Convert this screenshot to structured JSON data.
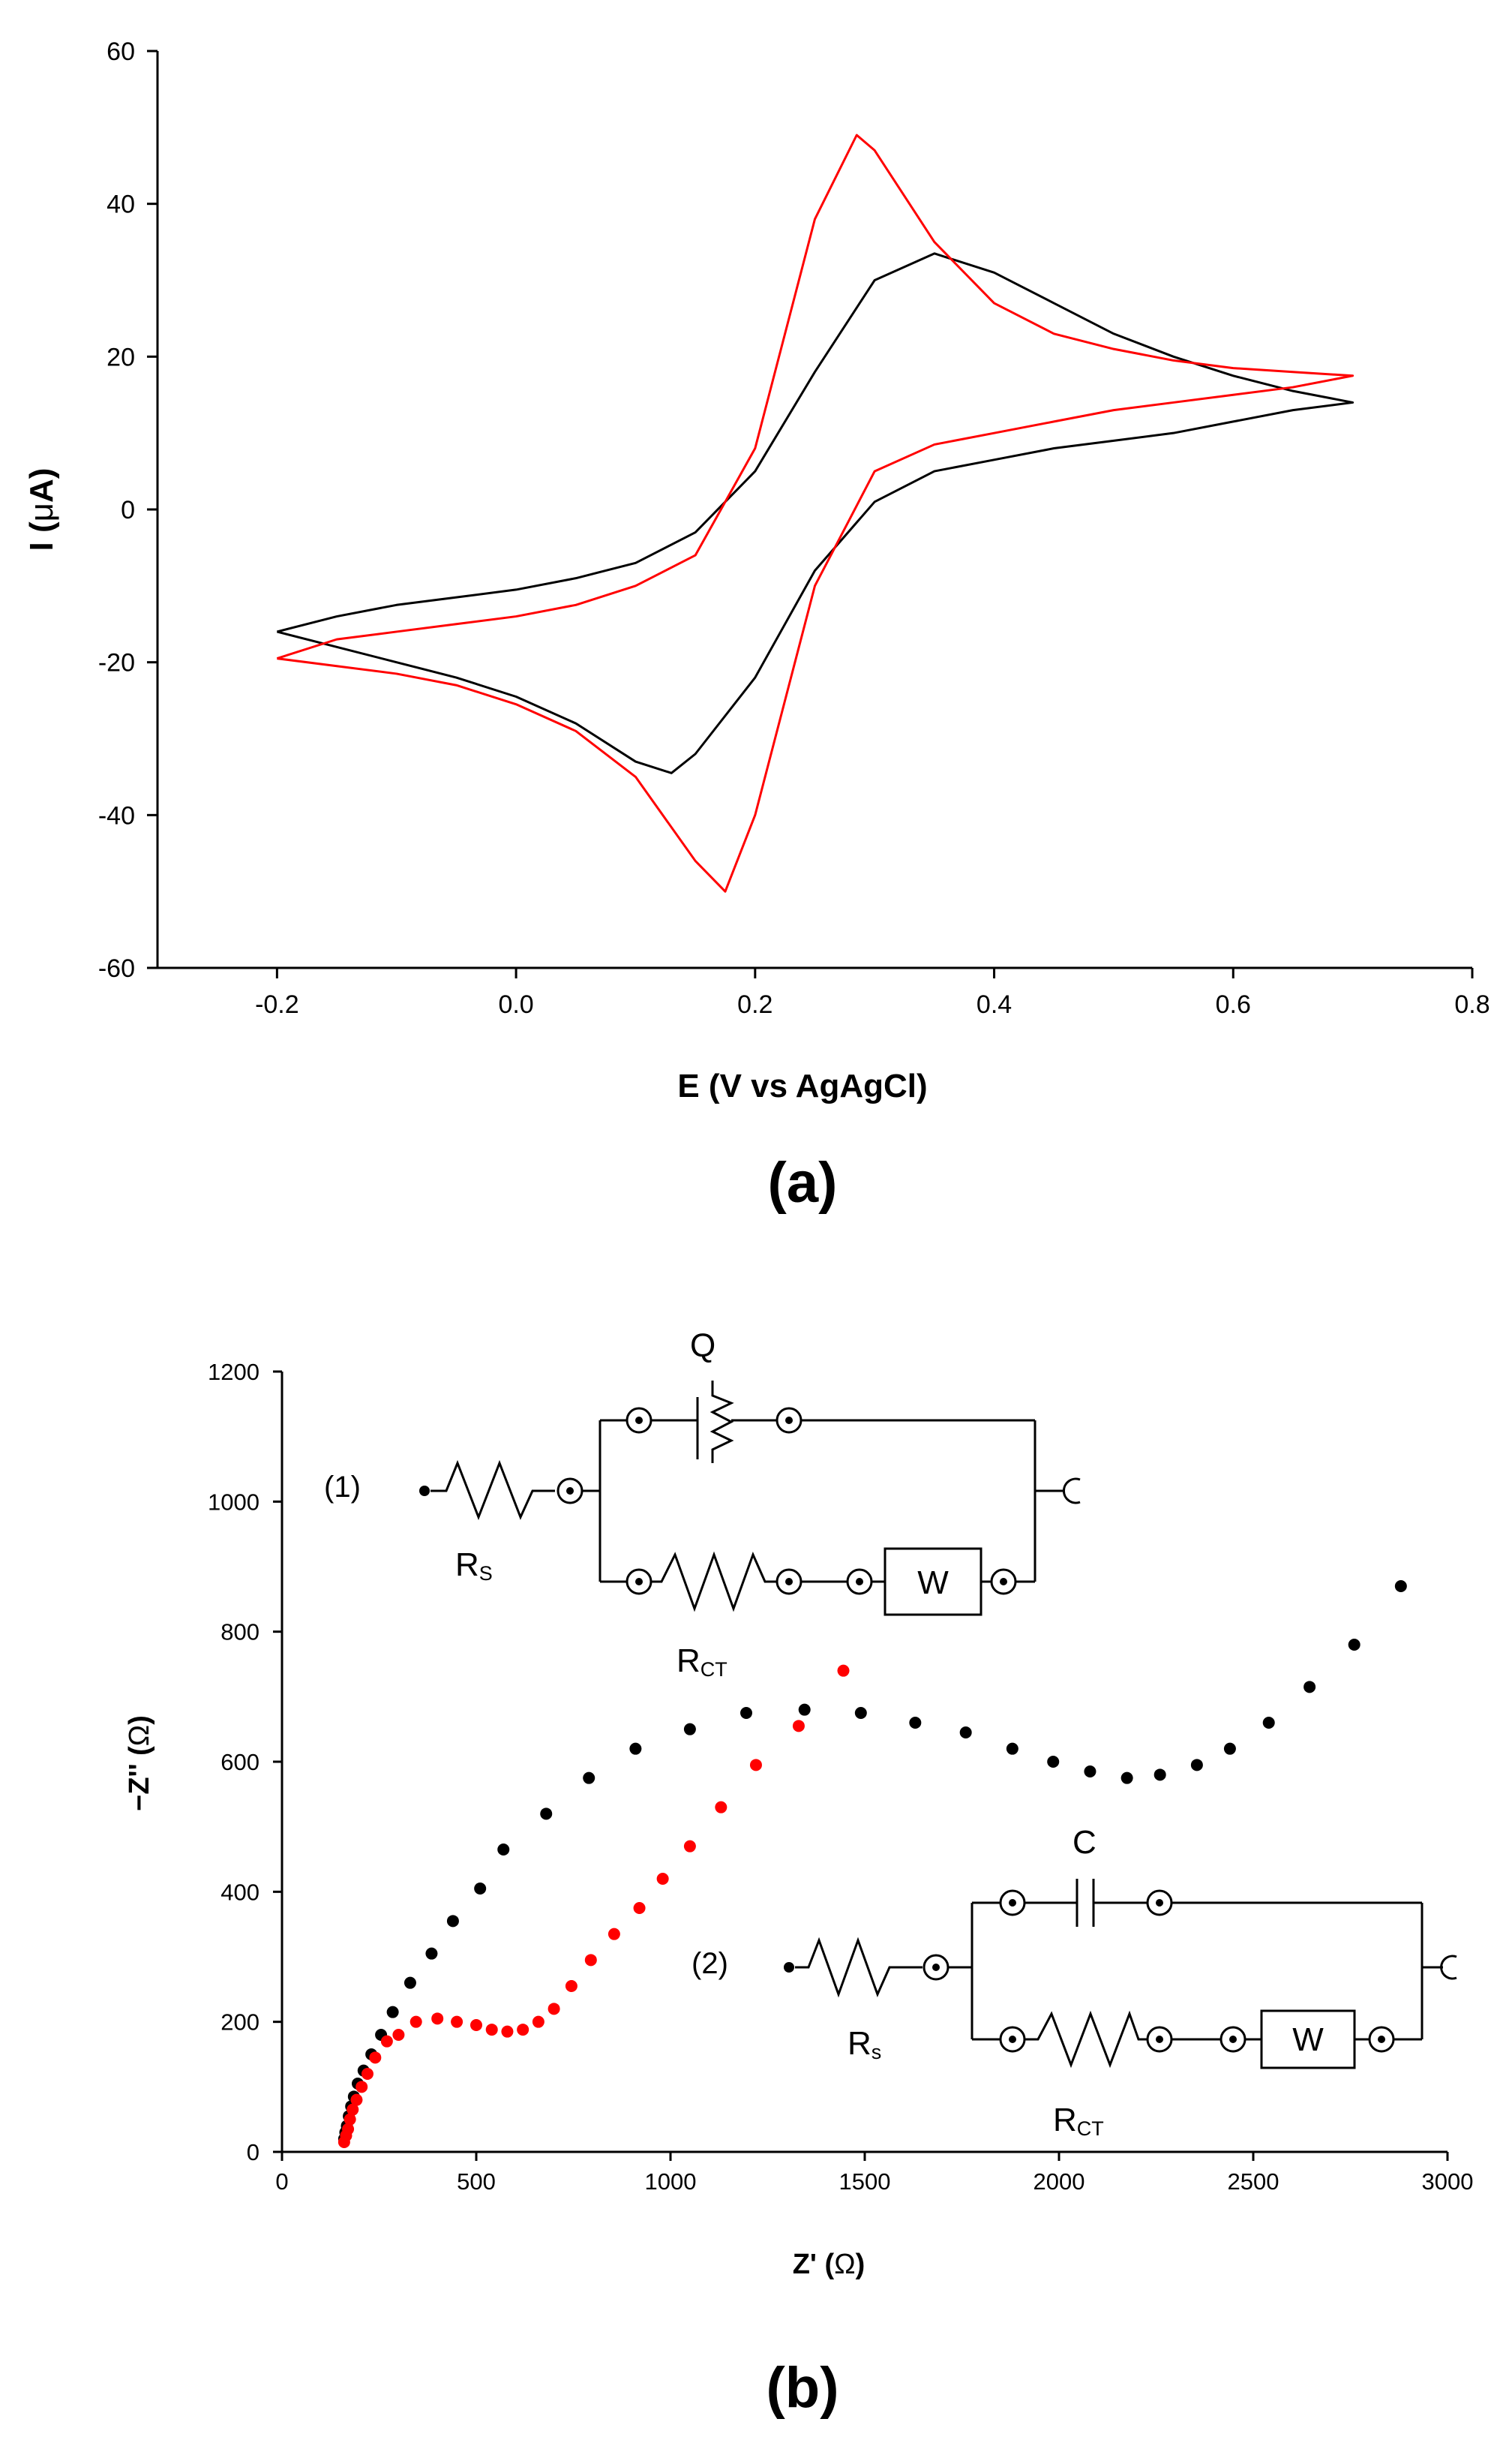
{
  "chart_data": [
    {
      "type": "line",
      "panel_label": "(a)",
      "xlabel": "E (V vs AgAgCl)",
      "ylabel_prefix": "I (",
      "ylabel_mu": "μ",
      "ylabel_suffix": "A)",
      "xlim": [
        -0.3,
        0.8
      ],
      "ylim": [
        -60,
        60
      ],
      "x_ticks": [
        -0.2,
        0.0,
        0.2,
        0.4,
        0.6,
        0.8
      ],
      "x_tick_labels": [
        "-0.2",
        "0.0",
        "0.2",
        "0.4",
        "0.6",
        "0.8"
      ],
      "y_ticks": [
        -60,
        -40,
        -20,
        0,
        20,
        40,
        60
      ],
      "y_tick_labels": [
        "-60",
        "-40",
        "-20",
        "0",
        "20",
        "40",
        "60"
      ],
      "grid": false,
      "series": [
        {
          "name": "black",
          "color": "#000000",
          "x": [
            -0.2,
            -0.15,
            -0.1,
            -0.05,
            0.0,
            0.05,
            0.1,
            0.15,
            0.2,
            0.25,
            0.3,
            0.35,
            0.4,
            0.45,
            0.5,
            0.55,
            0.6,
            0.65,
            0.7,
            0.65,
            0.6,
            0.55,
            0.5,
            0.45,
            0.4,
            0.35,
            0.3,
            0.25,
            0.2,
            0.15,
            0.13,
            0.1,
            0.05,
            0.0,
            -0.05,
            -0.1,
            -0.15,
            -0.2
          ],
          "y": [
            -16,
            -14,
            -12.5,
            -11.5,
            -10.5,
            -9,
            -7,
            -3,
            5,
            18,
            30,
            33.5,
            31,
            27,
            23,
            20,
            17.5,
            15.5,
            14,
            13,
            11.5,
            10,
            9,
            8,
            6.5,
            5,
            1,
            -8,
            -22,
            -32,
            -34.5,
            -33,
            -28,
            -24.5,
            -22,
            -20,
            -18,
            -16
          ]
        },
        {
          "name": "red",
          "color": "#ff0000",
          "x": [
            -0.2,
            -0.15,
            -0.1,
            -0.05,
            0.0,
            0.05,
            0.1,
            0.15,
            0.2,
            0.25,
            0.285,
            0.3,
            0.35,
            0.4,
            0.45,
            0.5,
            0.55,
            0.6,
            0.65,
            0.7,
            0.65,
            0.6,
            0.55,
            0.5,
            0.45,
            0.4,
            0.35,
            0.3,
            0.25,
            0.2,
            0.175,
            0.15,
            0.1,
            0.05,
            0.0,
            -0.05,
            -0.1,
            -0.15,
            -0.2
          ],
          "y": [
            -19.5,
            -17,
            -16,
            -15,
            -14,
            -12.5,
            -10,
            -6,
            8,
            38,
            49,
            47,
            35,
            27,
            23,
            21,
            19.5,
            18.5,
            18,
            17.5,
            16,
            15,
            14,
            13,
            11.5,
            10,
            8.5,
            5,
            -10,
            -40,
            -50,
            -46,
            -35,
            -29,
            -25.5,
            -23,
            -21.5,
            -20.5,
            -19.5
          ]
        }
      ]
    },
    {
      "type": "scatter",
      "panel_label": "(b)",
      "xlabel_prefix": "Z' (",
      "xlabel_symbol": "Ω",
      "xlabel_suffix": ")",
      "ylabel_prefix": "−Z'' (",
      "ylabel_symbol": "Ω",
      "ylabel_suffix": ")",
      "xlim": [
        0,
        3000
      ],
      "ylim": [
        0,
        1200
      ],
      "x_ticks": [
        0,
        500,
        1000,
        1500,
        2000,
        2500,
        3000
      ],
      "x_tick_labels": [
        "0",
        "500",
        "1000",
        "1500",
        "2000",
        "2500",
        "3000"
      ],
      "y_ticks": [
        0,
        200,
        400,
        600,
        800,
        1000,
        1200
      ],
      "y_tick_labels": [
        "0",
        "200",
        "400",
        "600",
        "800",
        "1000",
        "1200"
      ],
      "grid": false,
      "series": [
        {
          "name": "black",
          "color": "#000000",
          "x": [
            160,
            163,
            167,
            172,
            178,
            185,
            195,
            210,
            230,
            255,
            285,
            330,
            385,
            440,
            510,
            570,
            680,
            790,
            910,
            1050,
            1195,
            1345,
            1490,
            1630,
            1760,
            1880,
            1985,
            2080,
            2175,
            2260,
            2355,
            2440,
            2540,
            2645,
            2760,
            2880
          ],
          "y": [
            20,
            30,
            40,
            55,
            70,
            85,
            105,
            125,
            150,
            180,
            215,
            260,
            305,
            355,
            405,
            465,
            520,
            575,
            620,
            650,
            675,
            680,
            675,
            660,
            645,
            620,
            600,
            585,
            575,
            580,
            595,
            620,
            660,
            715,
            780,
            870
          ]
        },
        {
          "name": "red",
          "color": "#ff0000",
          "x": [
            160,
            165,
            170,
            175,
            182,
            192,
            205,
            220,
            240,
            270,
            300,
            345,
            400,
            450,
            500,
            540,
            580,
            620,
            660,
            700,
            745,
            795,
            855,
            920,
            980,
            1050,
            1130,
            1220,
            1330,
            1445
          ],
          "y": [
            15,
            25,
            35,
            50,
            65,
            80,
            100,
            120,
            145,
            170,
            180,
            200,
            205,
            200,
            195,
            188,
            185,
            188,
            200,
            220,
            255,
            295,
            335,
            375,
            420,
            470,
            530,
            595,
            655,
            740
          ]
        }
      ],
      "circuit1": {
        "number": "(1)",
        "element_Q": "Q",
        "element_Rs": "R",
        "element_Rs_sub": "S",
        "element_Rct": "R",
        "element_Rct_sub": "CT",
        "element_W": "W"
      },
      "circuit2": {
        "number": "(2)",
        "element_C": "C",
        "element_Rs": "R",
        "element_Rs_sub": "s",
        "element_Rct": "R",
        "element_Rct_sub": "CT",
        "element_W": "W"
      }
    }
  ]
}
